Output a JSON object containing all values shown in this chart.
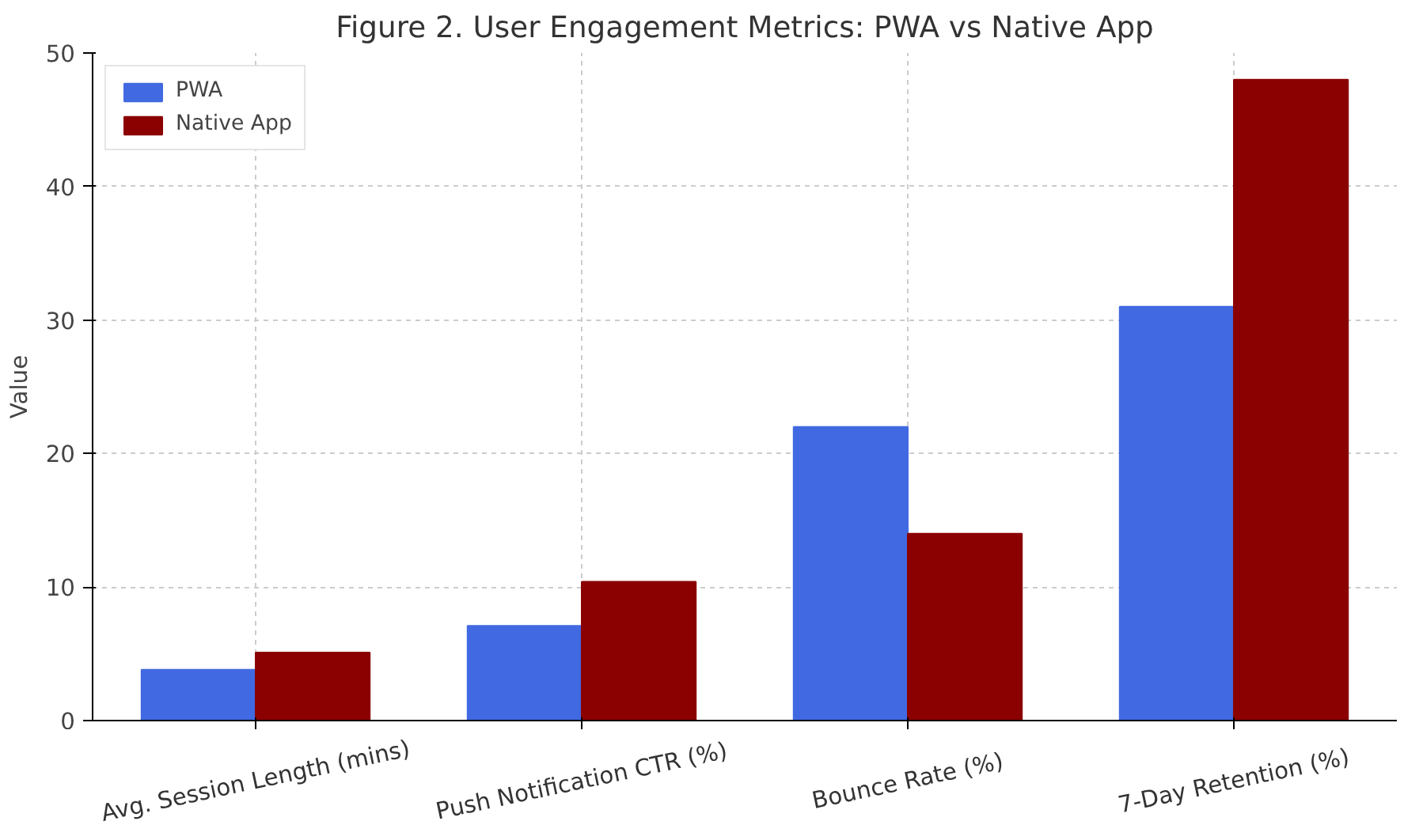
{
  "chart_data": {
    "type": "bar",
    "title": "Figure 2. User Engagement Metrics: PWA vs Native App",
    "ylabel": "Value",
    "categories": [
      "Avg. Session Length (mins)",
      "Push Notification CTR (%)",
      "Bounce Rate (%)",
      "7-Day Retention (%)"
    ],
    "series": [
      {
        "name": "PWA",
        "color": "#4169e1",
        "values": [
          3.8,
          7.1,
          22,
          31
        ]
      },
      {
        "name": "Native App",
        "color": "#8b0000",
        "values": [
          5.1,
          10.4,
          14,
          48
        ]
      }
    ],
    "ylim": [
      0,
      50
    ],
    "yticks": [
      0,
      10,
      20,
      30,
      40,
      50
    ],
    "grid": true,
    "legend": "top left"
  }
}
